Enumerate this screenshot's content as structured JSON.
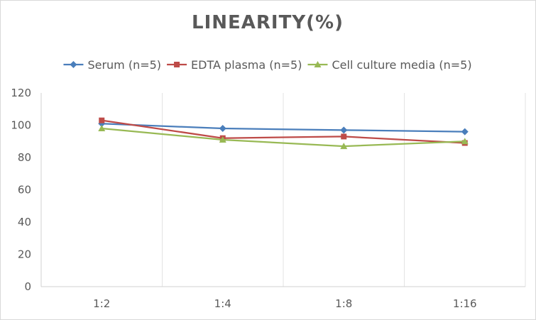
{
  "chart_data": {
    "type": "line",
    "title": "LINEARITY(%)",
    "xlabel": "",
    "ylabel": "",
    "categories": [
      "1:2",
      "1:4",
      "1:8",
      "1:16"
    ],
    "ylim": [
      0,
      120
    ],
    "yticks": [
      0,
      20,
      40,
      60,
      80,
      100,
      120
    ],
    "grid": "vertical",
    "legend_position": "top",
    "series": [
      {
        "name": "Serum (n=5)",
        "values": [
          101,
          98,
          97,
          96
        ],
        "color": "#4a7ebb",
        "marker": "diamond"
      },
      {
        "name": "EDTA plasma (n=5)",
        "values": [
          103,
          92,
          93,
          89
        ],
        "color": "#be4b48",
        "marker": "square"
      },
      {
        "name": "Cell culture media (n=5)",
        "values": [
          98,
          91,
          87,
          90
        ],
        "color": "#98b954",
        "marker": "triangle"
      }
    ]
  }
}
